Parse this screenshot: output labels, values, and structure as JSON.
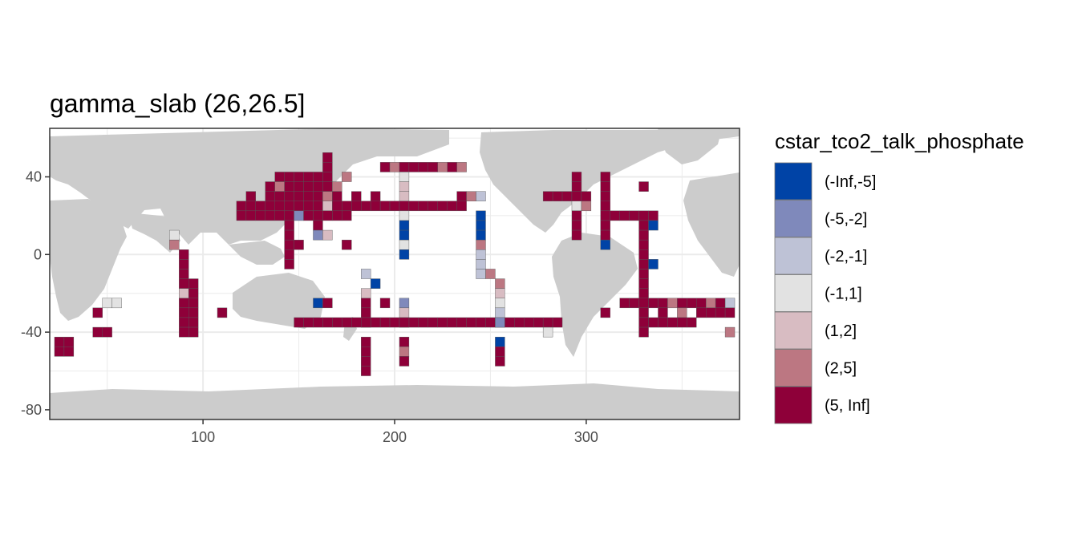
{
  "chart_data": {
    "type": "heatmap",
    "title": "gamma_slab (26,26.5]",
    "xlabel": "",
    "ylabel": "",
    "xlim": [
      20,
      380
    ],
    "ylim": [
      -85,
      65
    ],
    "x_ticks": [
      100,
      200,
      300
    ],
    "y_ticks": [
      40,
      0,
      -40,
      -80
    ],
    "grid": true,
    "cell_size": 5,
    "legend": {
      "title": "cstar_tco2_talk_phosphate",
      "placement": "right",
      "bins": [
        {
          "label": "(-Inf,-5]",
          "color": "#0043a6"
        },
        {
          "label": "(-5,-2]",
          "color": "#7f89bb"
        },
        {
          "label": "(-2,-1]",
          "color": "#bec2d6"
        },
        {
          "label": "(-1,1]",
          "color": "#e2e2e2"
        },
        {
          "label": "(1,2]",
          "color": "#d8bcc2"
        },
        {
          "label": "(2,5]",
          "color": "#bc7782"
        },
        {
          "label": "(5, Inf]",
          "color": "#8e0039"
        }
      ]
    },
    "cells": [
      [
        165,
        50,
        6
      ],
      [
        165,
        45,
        6
      ],
      [
        140,
        40,
        6
      ],
      [
        145,
        40,
        6
      ],
      [
        150,
        40,
        6
      ],
      [
        155,
        40,
        6
      ],
      [
        160,
        40,
        6
      ],
      [
        165,
        40,
        6
      ],
      [
        195,
        45,
        6
      ],
      [
        200,
        45,
        5
      ],
      [
        205,
        45,
        6
      ],
      [
        210,
        45,
        6
      ],
      [
        215,
        45,
        6
      ],
      [
        220,
        45,
        6
      ],
      [
        225,
        45,
        5
      ],
      [
        230,
        45,
        6
      ],
      [
        235,
        45,
        5
      ],
      [
        175,
        40,
        5
      ],
      [
        205,
        40,
        3
      ],
      [
        135,
        35,
        6
      ],
      [
        140,
        35,
        5
      ],
      [
        145,
        35,
        6
      ],
      [
        150,
        35,
        6
      ],
      [
        155,
        35,
        6
      ],
      [
        160,
        35,
        6
      ],
      [
        165,
        35,
        6
      ],
      [
        170,
        35,
        5
      ],
      [
        205,
        35,
        4
      ],
      [
        125,
        30,
        6
      ],
      [
        135,
        30,
        6
      ],
      [
        140,
        30,
        6
      ],
      [
        145,
        30,
        6
      ],
      [
        150,
        30,
        6
      ],
      [
        155,
        30,
        6
      ],
      [
        160,
        30,
        6
      ],
      [
        165,
        30,
        5
      ],
      [
        170,
        30,
        6
      ],
      [
        180,
        30,
        6
      ],
      [
        190,
        30,
        6
      ],
      [
        205,
        30,
        4
      ],
      [
        235,
        30,
        6
      ],
      [
        240,
        30,
        5
      ],
      [
        245,
        30,
        2
      ],
      [
        120,
        25,
        6
      ],
      [
        125,
        25,
        6
      ],
      [
        130,
        25,
        6
      ],
      [
        135,
        25,
        6
      ],
      [
        140,
        25,
        6
      ],
      [
        145,
        25,
        6
      ],
      [
        150,
        25,
        6
      ],
      [
        155,
        25,
        6
      ],
      [
        160,
        25,
        6
      ],
      [
        165,
        25,
        4
      ],
      [
        170,
        25,
        6
      ],
      [
        175,
        25,
        6
      ],
      [
        180,
        25,
        6
      ],
      [
        185,
        25,
        6
      ],
      [
        190,
        25,
        6
      ],
      [
        195,
        25,
        6
      ],
      [
        200,
        25,
        6
      ],
      [
        205,
        25,
        6
      ],
      [
        210,
        25,
        6
      ],
      [
        215,
        25,
        6
      ],
      [
        220,
        25,
        6
      ],
      [
        225,
        25,
        6
      ],
      [
        230,
        25,
        6
      ],
      [
        235,
        25,
        6
      ],
      [
        120,
        20,
        6
      ],
      [
        125,
        20,
        6
      ],
      [
        130,
        20,
        6
      ],
      [
        135,
        20,
        6
      ],
      [
        140,
        20,
        6
      ],
      [
        145,
        20,
        6
      ],
      [
        150,
        20,
        1
      ],
      [
        155,
        20,
        6
      ],
      [
        160,
        20,
        6
      ],
      [
        165,
        20,
        6
      ],
      [
        170,
        20,
        6
      ],
      [
        175,
        20,
        6
      ],
      [
        205,
        20,
        3
      ],
      [
        245,
        20,
        0
      ],
      [
        145,
        15,
        6
      ],
      [
        160,
        15,
        6
      ],
      [
        205,
        15,
        0
      ],
      [
        245,
        15,
        0
      ],
      [
        85,
        10,
        3
      ],
      [
        145,
        10,
        6
      ],
      [
        160,
        10,
        1
      ],
      [
        165,
        10,
        4
      ],
      [
        205,
        10,
        0
      ],
      [
        245,
        10,
        0
      ],
      [
        85,
        5,
        5
      ],
      [
        145,
        5,
        6
      ],
      [
        150,
        5,
        6
      ],
      [
        175,
        5,
        6
      ],
      [
        205,
        5,
        3
      ],
      [
        245,
        5,
        5
      ],
      [
        90,
        0,
        6
      ],
      [
        145,
        0,
        6
      ],
      [
        205,
        0,
        0
      ],
      [
        245,
        0,
        2
      ],
      [
        90,
        -5,
        6
      ],
      [
        145,
        -5,
        6
      ],
      [
        245,
        -5,
        2
      ],
      [
        90,
        -10,
        6
      ],
      [
        185,
        -10,
        2
      ],
      [
        245,
        -10,
        2
      ],
      [
        250,
        -10,
        5
      ],
      [
        90,
        -15,
        6
      ],
      [
        95,
        -15,
        6
      ],
      [
        190,
        -15,
        0
      ],
      [
        255,
        -15,
        5
      ],
      [
        90,
        -20,
        4
      ],
      [
        95,
        -20,
        6
      ],
      [
        185,
        -20,
        4
      ],
      [
        255,
        -20,
        4
      ],
      [
        50,
        -25,
        3
      ],
      [
        55,
        -25,
        3
      ],
      [
        90,
        -25,
        6
      ],
      [
        95,
        -25,
        6
      ],
      [
        160,
        -25,
        0
      ],
      [
        165,
        -25,
        6
      ],
      [
        185,
        -25,
        6
      ],
      [
        195,
        -25,
        6
      ],
      [
        205,
        -25,
        1
      ],
      [
        255,
        -25,
        3
      ],
      [
        45,
        -30,
        6
      ],
      [
        90,
        -30,
        6
      ],
      [
        95,
        -30,
        6
      ],
      [
        110,
        -30,
        6
      ],
      [
        185,
        -30,
        6
      ],
      [
        205,
        -30,
        4
      ],
      [
        255,
        -30,
        2
      ],
      [
        90,
        -35,
        6
      ],
      [
        95,
        -35,
        6
      ],
      [
        185,
        -35,
        6
      ],
      [
        205,
        -35,
        6
      ],
      [
        255,
        -35,
        1
      ],
      [
        45,
        -40,
        6
      ],
      [
        50,
        -40,
        6
      ],
      [
        90,
        -40,
        6
      ],
      [
        95,
        -40,
        6
      ],
      [
        280,
        -40,
        3
      ],
      [
        25,
        -45,
        6
      ],
      [
        30,
        -45,
        6
      ],
      [
        185,
        -45,
        6
      ],
      [
        205,
        -45,
        6
      ],
      [
        255,
        -45,
        0
      ],
      [
        25,
        -50,
        6
      ],
      [
        30,
        -50,
        6
      ],
      [
        185,
        -50,
        6
      ],
      [
        205,
        -50,
        5
      ],
      [
        255,
        -50,
        6
      ],
      [
        185,
        -55,
        6
      ],
      [
        205,
        -55,
        6
      ],
      [
        255,
        -55,
        6
      ],
      [
        185,
        -60,
        6
      ],
      [
        295,
        40,
        6
      ],
      [
        310,
        40,
        6
      ],
      [
        330,
        35,
        6
      ],
      [
        295,
        35,
        6
      ],
      [
        310,
        35,
        6
      ],
      [
        280,
        30,
        6
      ],
      [
        285,
        30,
        6
      ],
      [
        290,
        30,
        6
      ],
      [
        295,
        30,
        6
      ],
      [
        300,
        30,
        6
      ],
      [
        310,
        30,
        6
      ],
      [
        295,
        25,
        3
      ],
      [
        300,
        25,
        5
      ],
      [
        310,
        25,
        6
      ],
      [
        295,
        20,
        6
      ],
      [
        310,
        20,
        6
      ],
      [
        315,
        20,
        6
      ],
      [
        320,
        20,
        6
      ],
      [
        325,
        20,
        6
      ],
      [
        330,
        20,
        6
      ],
      [
        335,
        20,
        6
      ],
      [
        295,
        15,
        6
      ],
      [
        310,
        15,
        6
      ],
      [
        330,
        15,
        6
      ],
      [
        335,
        15,
        0
      ],
      [
        295,
        10,
        6
      ],
      [
        310,
        10,
        6
      ],
      [
        330,
        10,
        6
      ],
      [
        310,
        5,
        0
      ],
      [
        330,
        5,
        6
      ],
      [
        330,
        0,
        6
      ],
      [
        330,
        -5,
        6
      ],
      [
        335,
        -5,
        0
      ],
      [
        330,
        -10,
        6
      ],
      [
        330,
        -15,
        6
      ],
      [
        330,
        -20,
        6
      ],
      [
        320,
        -25,
        6
      ],
      [
        325,
        -25,
        6
      ],
      [
        330,
        -25,
        6
      ],
      [
        335,
        -25,
        6
      ],
      [
        340,
        -25,
        6
      ],
      [
        345,
        -25,
        5
      ],
      [
        350,
        -25,
        6
      ],
      [
        355,
        -25,
        6
      ],
      [
        360,
        -25,
        6
      ],
      [
        365,
        -25,
        5
      ],
      [
        370,
        -25,
        6
      ],
      [
        375,
        -25,
        2
      ],
      [
        310,
        -30,
        6
      ],
      [
        330,
        -30,
        6
      ],
      [
        340,
        -30,
        6
      ],
      [
        350,
        -30,
        5
      ],
      [
        360,
        -30,
        6
      ],
      [
        365,
        -30,
        6
      ],
      [
        370,
        -30,
        6
      ],
      [
        375,
        -30,
        6
      ],
      [
        330,
        -35,
        6
      ],
      [
        335,
        -35,
        6
      ],
      [
        340,
        -35,
        6
      ],
      [
        345,
        -35,
        6
      ],
      [
        350,
        -35,
        6
      ],
      [
        355,
        -35,
        6
      ],
      [
        330,
        -40,
        6
      ],
      [
        375,
        -40,
        5
      ]
    ],
    "latitude_track_south": {
      "lat": -35,
      "from": 150,
      "to": 285,
      "bin": 6
    }
  }
}
